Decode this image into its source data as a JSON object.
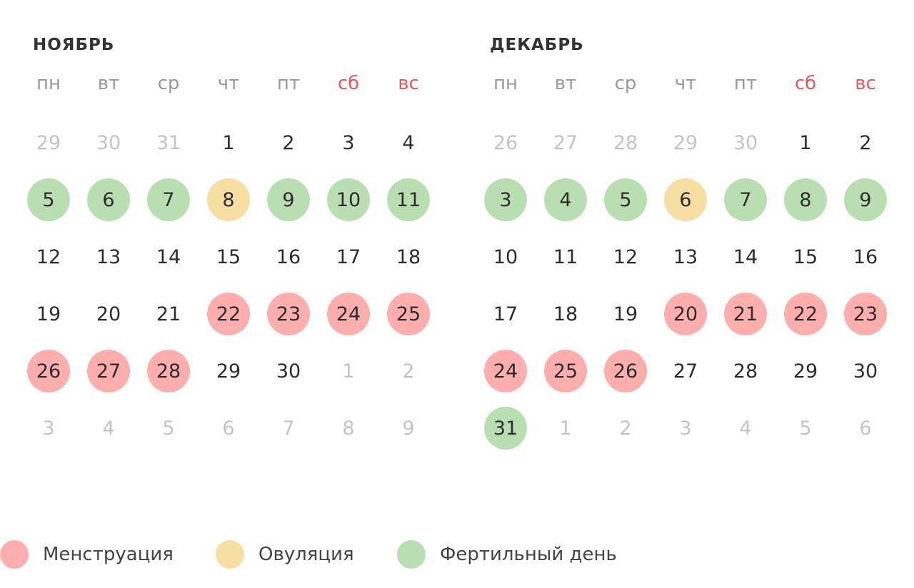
{
  "legend_colors": {
    "menstruation": "#ffaeae",
    "ovulation": "#f7dea3",
    "fertile": "#b9deb2",
    "weekend_text": "#e25b5b"
  },
  "months": [
    {
      "title": "НОЯБРЬ",
      "weekdays": [
        "пн",
        "вт",
        "ср",
        "чт",
        "пт",
        "сб",
        "вс"
      ],
      "weeks": [
        [
          {
            "d": "29",
            "t": "other"
          },
          {
            "d": "30",
            "t": "other"
          },
          {
            "d": "31",
            "t": "other"
          },
          {
            "d": "1",
            "t": ""
          },
          {
            "d": "2",
            "t": ""
          },
          {
            "d": "3",
            "t": ""
          },
          {
            "d": "4",
            "t": ""
          }
        ],
        [
          {
            "d": "5",
            "t": "fertile"
          },
          {
            "d": "6",
            "t": "fertile"
          },
          {
            "d": "7",
            "t": "fertile"
          },
          {
            "d": "8",
            "t": "ovulation"
          },
          {
            "d": "9",
            "t": "fertile"
          },
          {
            "d": "10",
            "t": "fertile"
          },
          {
            "d": "11",
            "t": "fertile"
          }
        ],
        [
          {
            "d": "12",
            "t": ""
          },
          {
            "d": "13",
            "t": ""
          },
          {
            "d": "14",
            "t": ""
          },
          {
            "d": "15",
            "t": ""
          },
          {
            "d": "16",
            "t": ""
          },
          {
            "d": "17",
            "t": ""
          },
          {
            "d": "18",
            "t": ""
          }
        ],
        [
          {
            "d": "19",
            "t": ""
          },
          {
            "d": "20",
            "t": ""
          },
          {
            "d": "21",
            "t": ""
          },
          {
            "d": "22",
            "t": "menstruation"
          },
          {
            "d": "23",
            "t": "menstruation"
          },
          {
            "d": "24",
            "t": "menstruation"
          },
          {
            "d": "25",
            "t": "menstruation"
          }
        ],
        [
          {
            "d": "26",
            "t": "menstruation"
          },
          {
            "d": "27",
            "t": "menstruation"
          },
          {
            "d": "28",
            "t": "menstruation"
          },
          {
            "d": "29",
            "t": ""
          },
          {
            "d": "30",
            "t": ""
          },
          {
            "d": "1",
            "t": "other"
          },
          {
            "d": "2",
            "t": "other"
          }
        ],
        [
          {
            "d": "3",
            "t": "other"
          },
          {
            "d": "4",
            "t": "other"
          },
          {
            "d": "5",
            "t": "other"
          },
          {
            "d": "6",
            "t": "other"
          },
          {
            "d": "7",
            "t": "other"
          },
          {
            "d": "8",
            "t": "other"
          },
          {
            "d": "9",
            "t": "other"
          }
        ]
      ]
    },
    {
      "title": "ДЕКАБРЬ",
      "weekdays": [
        "пн",
        "вт",
        "ср",
        "чт",
        "пт",
        "сб",
        "вс"
      ],
      "weeks": [
        [
          {
            "d": "26",
            "t": "other"
          },
          {
            "d": "27",
            "t": "other"
          },
          {
            "d": "28",
            "t": "other"
          },
          {
            "d": "29",
            "t": "other"
          },
          {
            "d": "30",
            "t": "other"
          },
          {
            "d": "1",
            "t": ""
          },
          {
            "d": "2",
            "t": ""
          }
        ],
        [
          {
            "d": "3",
            "t": "fertile"
          },
          {
            "d": "4",
            "t": "fertile"
          },
          {
            "d": "5",
            "t": "fertile"
          },
          {
            "d": "6",
            "t": "ovulation"
          },
          {
            "d": "7",
            "t": "fertile"
          },
          {
            "d": "8",
            "t": "fertile"
          },
          {
            "d": "9",
            "t": "fertile"
          }
        ],
        [
          {
            "d": "10",
            "t": ""
          },
          {
            "d": "11",
            "t": ""
          },
          {
            "d": "12",
            "t": ""
          },
          {
            "d": "13",
            "t": ""
          },
          {
            "d": "14",
            "t": ""
          },
          {
            "d": "15",
            "t": ""
          },
          {
            "d": "16",
            "t": ""
          }
        ],
        [
          {
            "d": "17",
            "t": ""
          },
          {
            "d": "18",
            "t": ""
          },
          {
            "d": "19",
            "t": ""
          },
          {
            "d": "20",
            "t": "menstruation"
          },
          {
            "d": "21",
            "t": "menstruation"
          },
          {
            "d": "22",
            "t": "menstruation"
          },
          {
            "d": "23",
            "t": "menstruation"
          }
        ],
        [
          {
            "d": "24",
            "t": "menstruation"
          },
          {
            "d": "25",
            "t": "menstruation"
          },
          {
            "d": "26",
            "t": "menstruation"
          },
          {
            "d": "27",
            "t": ""
          },
          {
            "d": "28",
            "t": ""
          },
          {
            "d": "29",
            "t": ""
          },
          {
            "d": "30",
            "t": ""
          }
        ],
        [
          {
            "d": "31",
            "t": "fertile"
          },
          {
            "d": "1",
            "t": "other"
          },
          {
            "d": "2",
            "t": "other"
          },
          {
            "d": "3",
            "t": "other"
          },
          {
            "d": "4",
            "t": "other"
          },
          {
            "d": "5",
            "t": "other"
          },
          {
            "d": "6",
            "t": "other"
          }
        ]
      ]
    }
  ],
  "legend": [
    {
      "key": "menstruation",
      "label": "Менструация"
    },
    {
      "key": "ovulation",
      "label": "Овуляция"
    },
    {
      "key": "fertile",
      "label": "Фертильный день"
    }
  ]
}
